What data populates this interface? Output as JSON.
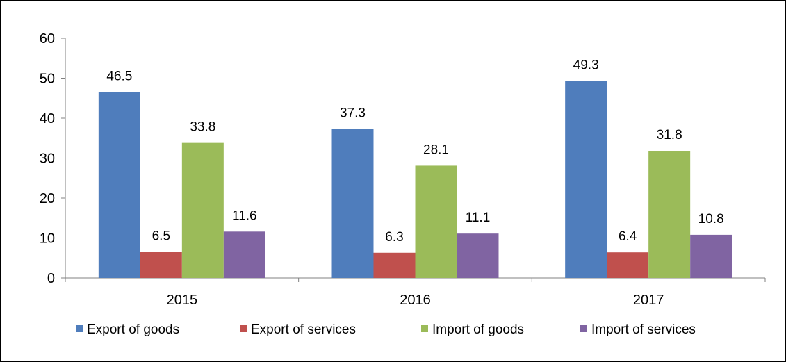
{
  "chart_data": {
    "type": "bar",
    "title": "",
    "xlabel": "",
    "ylabel": "",
    "categories": [
      "2015",
      "2016",
      "2017"
    ],
    "series": [
      {
        "name": "Export of goods",
        "color": "#4f7dbc",
        "values": [
          46.5,
          37.3,
          49.3
        ]
      },
      {
        "name": "Export of services",
        "color": "#c0504d",
        "values": [
          6.5,
          6.3,
          6.4
        ]
      },
      {
        "name": "Import of goods",
        "color": "#9bbb59",
        "values": [
          33.8,
          28.1,
          31.8
        ]
      },
      {
        "name": "Import of services",
        "color": "#8064a2",
        "values": [
          11.6,
          11.1,
          10.8
        ]
      }
    ],
    "ylim": [
      0,
      60
    ],
    "yticks": [
      0,
      10,
      20,
      30,
      40,
      50,
      60
    ],
    "grid": false,
    "data_labels": true,
    "legend": "bottom"
  }
}
